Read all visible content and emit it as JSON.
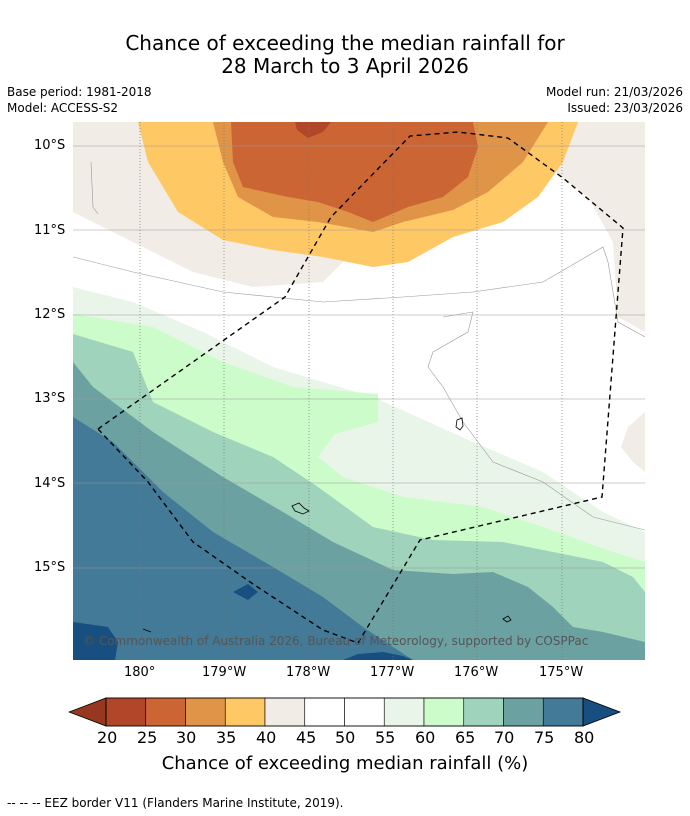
{
  "title": {
    "line1": "Chance of exceeding the median rainfall for",
    "line2": "28 March to 3 April 2026"
  },
  "meta": {
    "base_period": "Base period: 1981-2018",
    "model": "Model: ACCESS-S2",
    "model_run": "Model run: 21/03/2026",
    "issued": "Issued: 23/03/2026"
  },
  "map": {
    "lat_labels": [
      "10°S",
      "11°S",
      "12°S",
      "13°S",
      "14°S",
      "15°S"
    ],
    "lon_labels": [
      "180°",
      "179°W",
      "178°W",
      "177°W",
      "176°W",
      "175°W"
    ],
    "copyright": "© Commonwealth of Australia 2026, Bureau of Meteorology, supported by COSPPac"
  },
  "colorbar": {
    "ticks": [
      "20",
      "25",
      "30",
      "35",
      "40",
      "45",
      "50",
      "55",
      "60",
      "65",
      "70",
      "75",
      "80"
    ],
    "colors": [
      "#b14728",
      "#cc6534",
      "#e09448",
      "#fec865",
      "#f1ece6",
      "#ffffff",
      "#ffffff",
      "#eaf5e9",
      "#cbfcca",
      "#9fd3bb",
      "#6ca1a1",
      "#437a98"
    ],
    "under_color": "#96381f",
    "over_color": "#174f80",
    "label": "Chance of exceeding median rainfall (%)"
  },
  "footer": {
    "legend_line": "--  --  -- EEZ border V11 (Flanders Marine Institute, 2019)."
  }
}
